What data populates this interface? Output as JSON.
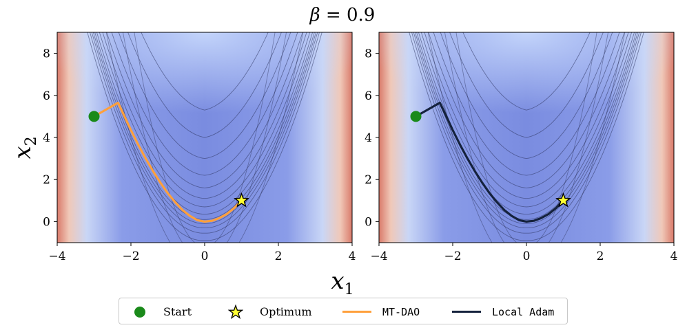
{
  "figure": {
    "title_prefix": "β",
    "title_suffix": " = 0.9",
    "xlabel_base": "x",
    "xlabel_sub": "1",
    "ylabel_base": "x",
    "ylabel_sub": "2"
  },
  "legend": {
    "items": [
      {
        "label": "Start",
        "marker": "circle",
        "color": "#1a8a1a"
      },
      {
        "label": "Optimum",
        "marker": "star",
        "color": "#ffff33"
      },
      {
        "label": "MT-DAO",
        "marker": "line",
        "color": "#ffa03c"
      },
      {
        "label": "Local Adam",
        "marker": "line",
        "color": "#15223d"
      }
    ]
  },
  "chart_data": [
    {
      "type": "contour",
      "subtitle": "",
      "series_name": "MT-DAO",
      "series_color": "#ffa03c",
      "xlim": [
        -4,
        4
      ],
      "ylim": [
        -1,
        9
      ],
      "xticks": [
        -4,
        -2,
        0,
        2,
        4
      ],
      "yticks": [
        0,
        2,
        4,
        6,
        8
      ],
      "xtick_labels": [
        "−4",
        "−2",
        "0",
        "2",
        "4"
      ],
      "ytick_labels": [
        "0",
        "2",
        "4",
        "6",
        "8"
      ],
      "start": [
        -3,
        5
      ],
      "optimum": [
        1,
        1
      ],
      "path": {
        "x": [
          -3.0,
          -2.35,
          -2.2,
          -2.0,
          -1.8,
          -1.6,
          -1.4,
          -1.2,
          -1.0,
          -0.8,
          -0.6,
          -0.4,
          -0.2,
          0.0,
          0.2,
          0.4,
          0.6,
          0.8,
          1.0
        ],
        "y": [
          5.0,
          5.65,
          5.1,
          4.35,
          3.65,
          3.0,
          2.4,
          1.85,
          1.35,
          0.92,
          0.55,
          0.27,
          0.07,
          0.0,
          0.04,
          0.17,
          0.36,
          0.64,
          1.0
        ]
      }
    },
    {
      "type": "contour",
      "subtitle": "",
      "series_name": "Local Adam",
      "series_color": "#15223d",
      "xlim": [
        -4,
        4
      ],
      "ylim": [
        -1,
        9
      ],
      "xticks": [
        -4,
        -2,
        0,
        2,
        4
      ],
      "yticks": [
        0,
        2,
        4,
        6,
        8
      ],
      "xtick_labels": [
        "−4",
        "−2",
        "0",
        "2",
        "4"
      ],
      "ytick_labels": [
        "0",
        "2",
        "4",
        "6",
        "8"
      ],
      "start": [
        -3,
        5
      ],
      "optimum": [
        1,
        1
      ],
      "path": {
        "x": [
          -3.0,
          -2.35,
          -2.2,
          -2.0,
          -1.8,
          -1.6,
          -1.4,
          -1.2,
          -1.0,
          -0.8,
          -0.6,
          -0.4,
          -0.2,
          0.0,
          0.2,
          0.4,
          0.6,
          0.8,
          1.0
        ],
        "y": [
          5.0,
          5.65,
          5.1,
          4.35,
          3.65,
          3.0,
          2.4,
          1.85,
          1.35,
          0.92,
          0.55,
          0.27,
          0.07,
          0.0,
          0.04,
          0.17,
          0.36,
          0.64,
          1.0
        ]
      }
    }
  ]
}
